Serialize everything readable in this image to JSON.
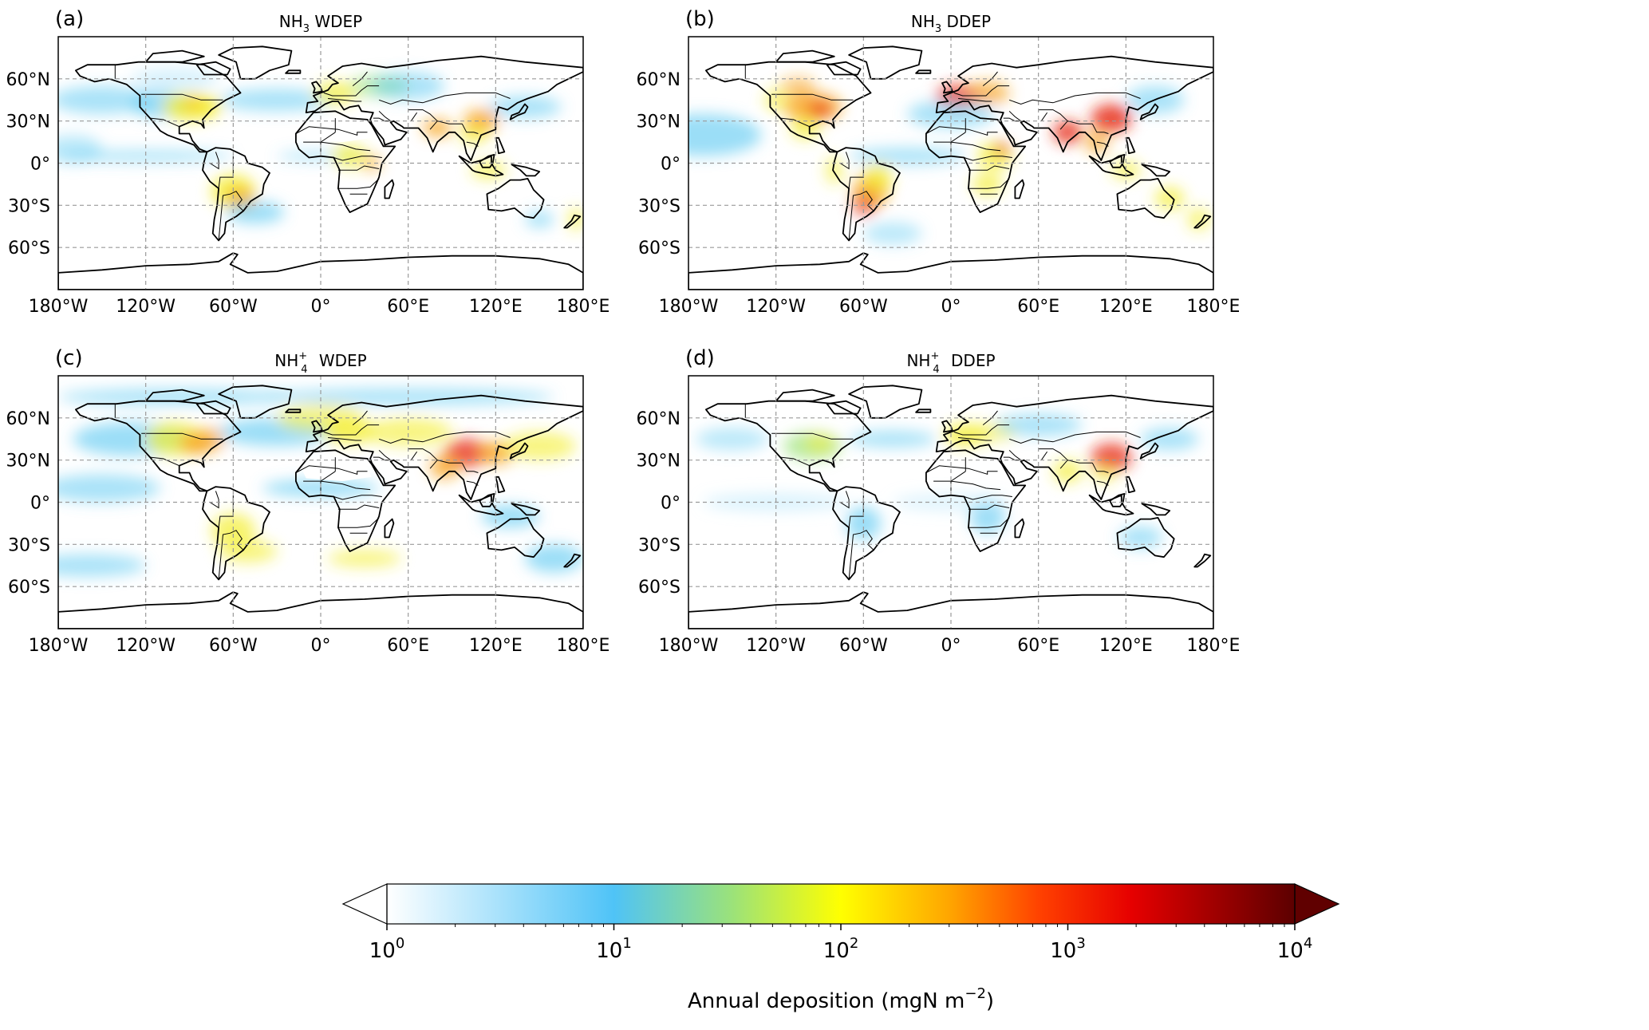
{
  "panels": [
    {
      "letter": "(a)",
      "species": "NH",
      "sub": "3",
      "sup": "",
      "kind": "WDEP",
      "variant": "wdep3"
    },
    {
      "letter": "(b)",
      "species": "NH",
      "sub": "3",
      "sup": "",
      "kind": "DDEP",
      "variant": "ddep3"
    },
    {
      "letter": "(c)",
      "species": "NH",
      "sub": "4",
      "sup": "+",
      "kind": "WDEP",
      "variant": "wdep4"
    },
    {
      "letter": "(d)",
      "species": "NH",
      "sub": "4",
      "sup": "+",
      "kind": "DDEP",
      "variant": "ddep4"
    }
  ],
  "lon_ticks": [
    "180°W",
    "120°W",
    "60°W",
    "0°",
    "60°E",
    "120°E",
    "180°E"
  ],
  "lat_ticks": [
    "60°N",
    "30°N",
    "0°",
    "30°S",
    "60°S"
  ],
  "lon_values": [
    -180,
    -120,
    -60,
    0,
    60,
    120,
    180
  ],
  "lat_values": [
    60,
    30,
    0,
    -30,
    -60
  ],
  "lat_range": [
    -90,
    90
  ],
  "lon_range": [
    -180,
    180
  ],
  "colorbar": {
    "label_text": "Annual deposition (mgN m",
    "label_exp": "−2",
    "label_close": ")",
    "ticks": [
      {
        "base": "10",
        "exp": "0"
      },
      {
        "base": "10",
        "exp": "1"
      },
      {
        "base": "10",
        "exp": "2"
      },
      {
        "base": "10",
        "exp": "3"
      },
      {
        "base": "10",
        "exp": "4"
      }
    ],
    "scale": "log",
    "range": [
      1,
      10000
    ],
    "extend": "both",
    "colors": [
      "#ffffff",
      "#4fc3f7",
      "#8ee36a",
      "#ffff00",
      "#ffa500",
      "#ff1a00",
      "#e60000",
      "#600000"
    ]
  }
}
